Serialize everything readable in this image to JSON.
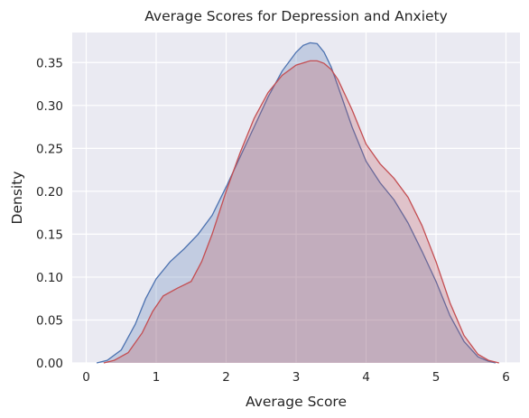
{
  "chart_data": {
    "type": "area",
    "title": "Average Scores for Depression and Anxiety",
    "xlabel": "Average Score",
    "ylabel": "Density",
    "xlim": [
      -0.2,
      6.2
    ],
    "ylim": [
      0,
      0.385
    ],
    "xticks": [
      0,
      1,
      2,
      3,
      4,
      5,
      6
    ],
    "yticks": [
      0.0,
      0.05,
      0.1,
      0.15,
      0.2,
      0.25,
      0.3,
      0.35
    ],
    "ytick_labels": [
      "0.00",
      "0.05",
      "0.10",
      "0.15",
      "0.20",
      "0.25",
      "0.30",
      "0.35"
    ],
    "grid": true,
    "background": "#eaeaf2",
    "gridline_color": "#ffffff",
    "series": [
      {
        "color": "#4c72b0",
        "fill_opacity": 0.25,
        "x": [
          0.15,
          0.3,
          0.5,
          0.7,
          0.85,
          1.0,
          1.2,
          1.4,
          1.6,
          1.8,
          2.0,
          2.2,
          2.4,
          2.6,
          2.8,
          3.0,
          3.1,
          3.2,
          3.3,
          3.4,
          3.5,
          3.6,
          3.8,
          4.0,
          4.2,
          4.4,
          4.6,
          4.8,
          5.0,
          5.2,
          5.4,
          5.6,
          5.75,
          5.85
        ],
        "y": [
          0.0,
          0.003,
          0.015,
          0.045,
          0.075,
          0.098,
          0.118,
          0.133,
          0.15,
          0.172,
          0.205,
          0.24,
          0.275,
          0.31,
          0.34,
          0.362,
          0.37,
          0.373,
          0.372,
          0.362,
          0.345,
          0.322,
          0.275,
          0.235,
          0.21,
          0.19,
          0.163,
          0.13,
          0.095,
          0.055,
          0.025,
          0.007,
          0.002,
          0.0
        ]
      },
      {
        "color": "#c44e52",
        "fill_opacity": 0.25,
        "x": [
          0.25,
          0.4,
          0.6,
          0.8,
          0.95,
          1.1,
          1.3,
          1.5,
          1.65,
          1.8,
          2.0,
          2.2,
          2.4,
          2.6,
          2.8,
          3.0,
          3.2,
          3.3,
          3.4,
          3.5,
          3.6,
          3.8,
          4.0,
          4.2,
          4.4,
          4.6,
          4.8,
          5.0,
          5.2,
          5.4,
          5.6,
          5.75,
          5.9
        ],
        "y": [
          0.0,
          0.003,
          0.012,
          0.035,
          0.06,
          0.078,
          0.087,
          0.095,
          0.118,
          0.15,
          0.2,
          0.245,
          0.285,
          0.315,
          0.335,
          0.347,
          0.352,
          0.352,
          0.349,
          0.342,
          0.33,
          0.295,
          0.255,
          0.232,
          0.215,
          0.193,
          0.16,
          0.118,
          0.07,
          0.032,
          0.01,
          0.003,
          0.0
        ]
      }
    ]
  }
}
